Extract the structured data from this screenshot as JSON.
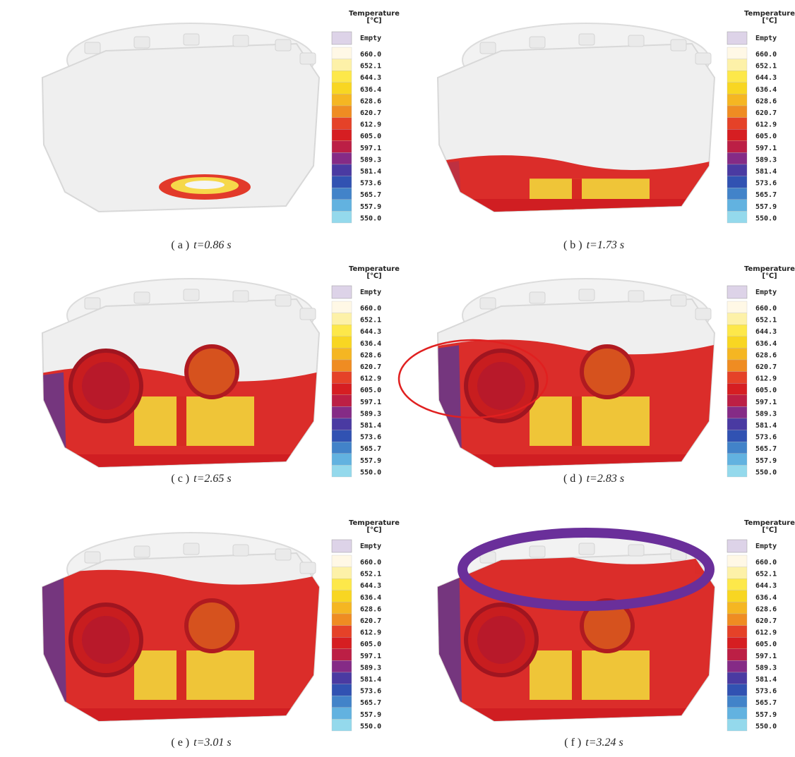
{
  "legend": {
    "title": "Temperature",
    "unit": "[℃]",
    "empty": "Empty",
    "levels": [
      "660.0",
      "652.1",
      "644.3",
      "636.4",
      "628.6",
      "620.7",
      "612.9",
      "605.0",
      "597.1",
      "589.3",
      "581.4",
      "573.6",
      "565.7",
      "557.9",
      "550.0"
    ]
  },
  "panels": [
    {
      "label": "( a )",
      "time": "t=0.86 s"
    },
    {
      "label": "( b )",
      "time": "t=1.73 s"
    },
    {
      "label": "( c )",
      "time": "t=2.65 s"
    },
    {
      "label": "( d )",
      "time": "t=2.83 s"
    },
    {
      "label": "( e )",
      "time": "t=3.01 s"
    },
    {
      "label": "( f )",
      "time": "t=3.24 s"
    }
  ]
}
